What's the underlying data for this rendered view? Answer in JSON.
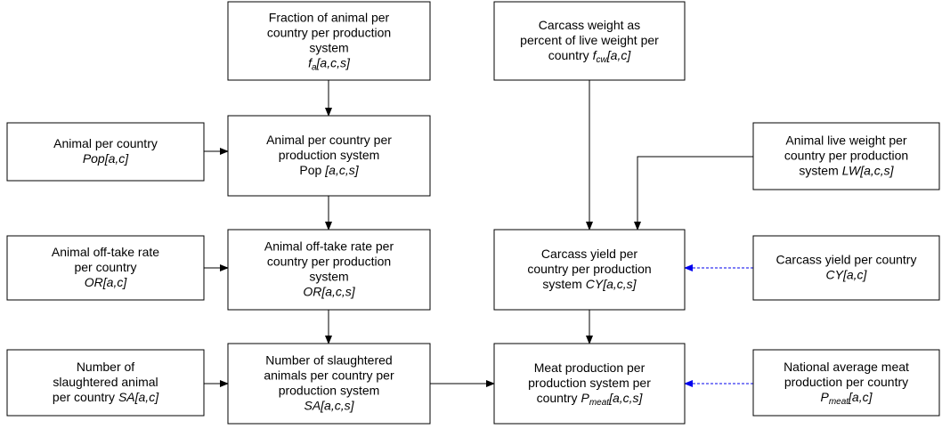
{
  "nodes": [
    {
      "lines": [
        [
          "Fraction of animal per"
        ],
        [
          "country per production"
        ],
        [
          "system"
        ],
        [
          "f",
          "a",
          "[a,c,s]"
        ]
      ]
    },
    {
      "lines": [
        [
          "Carcass weight  as"
        ],
        [
          "percent of live weight per"
        ],
        [
          "country",
          "f",
          "cw",
          "[a,c]"
        ]
      ]
    },
    {
      "lines": [
        [
          "Animal per country"
        ],
        [
          "Pop[a,c]"
        ]
      ]
    },
    {
      "lines": [
        [
          "Animal per country per"
        ],
        [
          "production system"
        ],
        [
          "Pop",
          "[a,c,s]"
        ]
      ]
    },
    {
      "lines": [
        [
          "Animal live weight  per"
        ],
        [
          "country per production"
        ],
        [
          "system",
          "LW[a,c,s]"
        ]
      ]
    },
    {
      "lines": [
        [
          "Animal off-take rate"
        ],
        [
          "per country"
        ],
        [
          "OR[a,c]"
        ]
      ]
    },
    {
      "lines": [
        [
          "Animal off-take rate per"
        ],
        [
          "country per production"
        ],
        [
          "system"
        ],
        [
          "OR[a,c,s]"
        ]
      ]
    },
    {
      "lines": [
        [
          "Carcass yield per"
        ],
        [
          "country per production"
        ],
        [
          "system",
          "CY[a,c,s]"
        ]
      ]
    },
    {
      "lines": [
        [
          "Carcass yield per country"
        ],
        [
          "CY[a,c]"
        ]
      ]
    },
    {
      "lines": [
        [
          "Number of"
        ],
        [
          "slaughtered animal"
        ],
        [
          "per country",
          "SA[a,c]"
        ]
      ]
    },
    {
      "lines": [
        [
          "Number of slaughtered"
        ],
        [
          "animals per country per"
        ],
        [
          "production system"
        ],
        [
          "SA[a,c,s]"
        ]
      ]
    },
    {
      "lines": [
        [
          "Meat production per"
        ],
        [
          "production system per"
        ],
        [
          "country",
          "P",
          "meat",
          "[a,c,s]"
        ]
      ]
    },
    {
      "lines": [
        [
          "National average meat"
        ],
        [
          "production per country"
        ],
        [
          "P",
          "meat",
          "[a,c]"
        ]
      ]
    }
  ]
}
